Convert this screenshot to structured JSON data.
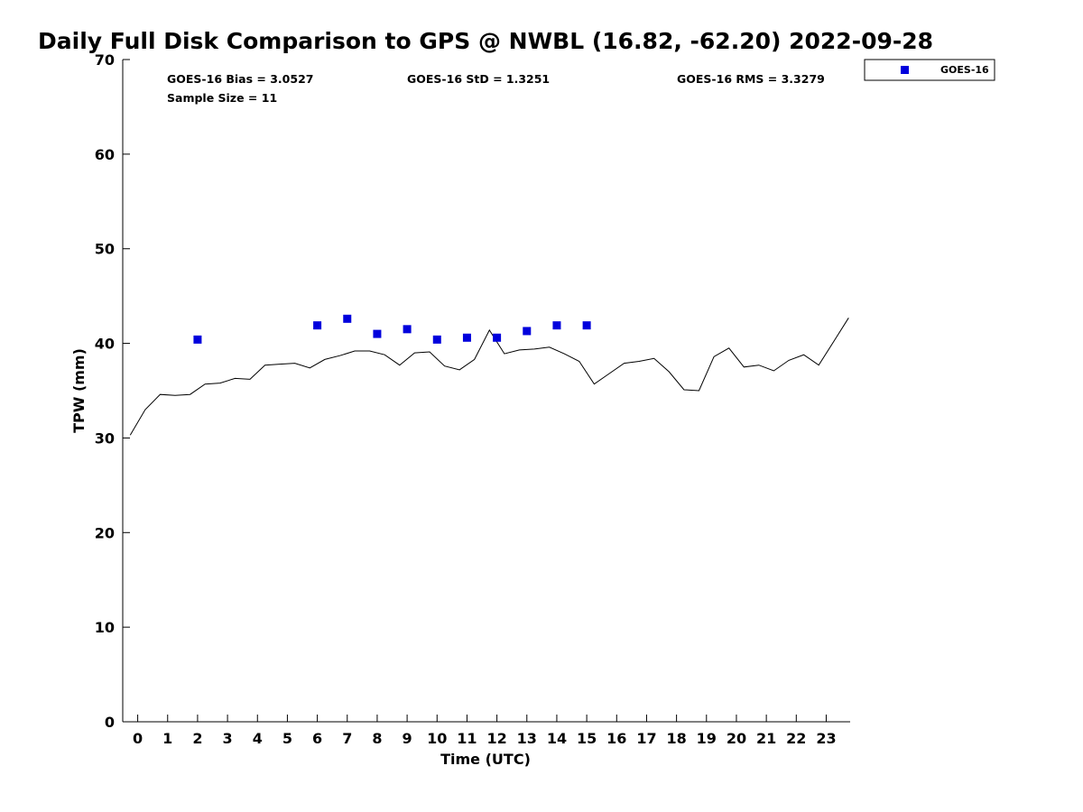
{
  "chart_data": {
    "type": "line",
    "title": "Daily Full Disk Comparison to GPS @ NWBL (16.82, -62.20) 2022-09-28",
    "xlabel": "Time (UTC)",
    "ylabel": "TPW (mm)",
    "xlim": [
      -0.5,
      23.8
    ],
    "ylim": [
      0,
      70
    ],
    "x_ticks": [
      0,
      1,
      2,
      3,
      4,
      5,
      6,
      7,
      8,
      9,
      10,
      11,
      12,
      13,
      14,
      15,
      16,
      17,
      18,
      19,
      20,
      21,
      22,
      23
    ],
    "y_ticks": [
      0,
      10,
      20,
      30,
      40,
      50,
      60,
      70
    ],
    "grid": false,
    "legend_position": "top-right, outside plot",
    "stats": {
      "bias": "GOES-16 Bias = 3.0527",
      "std": "GOES-16 StD = 1.3251",
      "rms": "GOES-16 RMS = 3.3279",
      "sample": "Sample Size = 11"
    },
    "series": [
      {
        "type": "line",
        "color": "#000000",
        "x": [
          -0.25,
          0.25,
          0.75,
          1.25,
          1.75,
          2.25,
          2.75,
          3.25,
          3.75,
          4.25,
          4.75,
          5.25,
          5.75,
          6.25,
          6.75,
          7.25,
          7.75,
          8.25,
          8.75,
          9.25,
          9.75,
          10.25,
          10.75,
          11.25,
          11.75,
          12.25,
          12.75,
          13.25,
          13.75,
          14.25,
          14.75,
          15.25,
          15.75,
          16.25,
          16.75,
          17.25,
          17.75,
          18.25,
          18.75,
          19.25,
          19.75,
          20.25,
          20.75,
          21.25,
          21.75,
          22.25,
          22.75,
          23.25,
          23.75
        ],
        "y": [
          30.3,
          33.0,
          34.6,
          34.5,
          34.6,
          35.7,
          35.8,
          36.3,
          36.2,
          37.7,
          37.8,
          37.9,
          37.4,
          38.3,
          38.7,
          39.2,
          39.2,
          38.8,
          37.7,
          39.0,
          39.1,
          37.6,
          37.2,
          38.3,
          41.4,
          38.9,
          39.3,
          39.4,
          39.6,
          38.9,
          38.1,
          35.7,
          36.8,
          37.9,
          38.1,
          38.4,
          37.0,
          35.1,
          35.0,
          38.6,
          39.5,
          37.5,
          37.7,
          37.1,
          38.2,
          38.8,
          37.7,
          40.2,
          42.7
        ]
      },
      {
        "name": "GOES-16",
        "type": "scatter",
        "marker": "square",
        "color": "#0000dd",
        "x": [
          2,
          6,
          7,
          8,
          9,
          10,
          11,
          12,
          13,
          14,
          15
        ],
        "y": [
          40.4,
          41.9,
          42.6,
          41.0,
          41.5,
          40.4,
          40.6,
          40.6,
          41.3,
          41.9,
          41.9
        ]
      }
    ]
  }
}
